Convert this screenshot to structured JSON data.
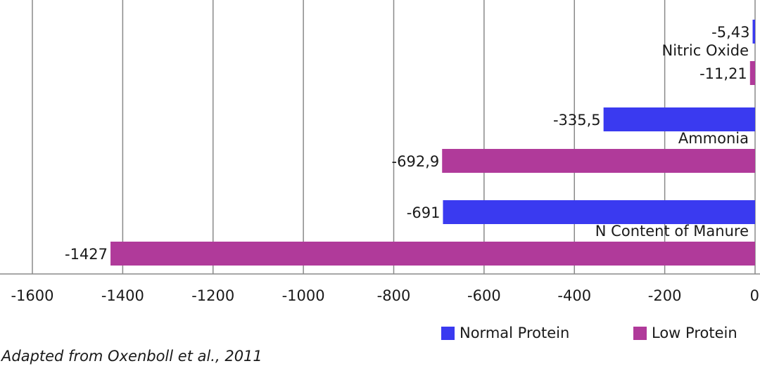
{
  "chart_data": {
    "type": "bar",
    "orientation": "horizontal",
    "categories": [
      "Nitric Oxide",
      "Ammonia",
      "N Content of Manure"
    ],
    "series": [
      {
        "name": "Normal Protein",
        "values": [
          -5.43,
          -335.5,
          -691
        ],
        "labels": [
          "-5,43",
          "-335,5",
          "-691"
        ],
        "color": "#3a3af0"
      },
      {
        "name": "Low Protein",
        "values": [
          -11.21,
          -692.9,
          -1427
        ],
        "labels": [
          "-11,21",
          "-692,9",
          "-1427"
        ],
        "color": "#b03a9a"
      }
    ],
    "xlim": [
      -1600,
      0
    ],
    "xticks": [
      "-1600",
      "-1400",
      "-1200",
      "-1000",
      "-800",
      "-600",
      "-400",
      "-200",
      "0"
    ],
    "grid": true,
    "legend_position": "bottom-right"
  },
  "source_text": "Adapted from Oxenboll et al., 2011"
}
